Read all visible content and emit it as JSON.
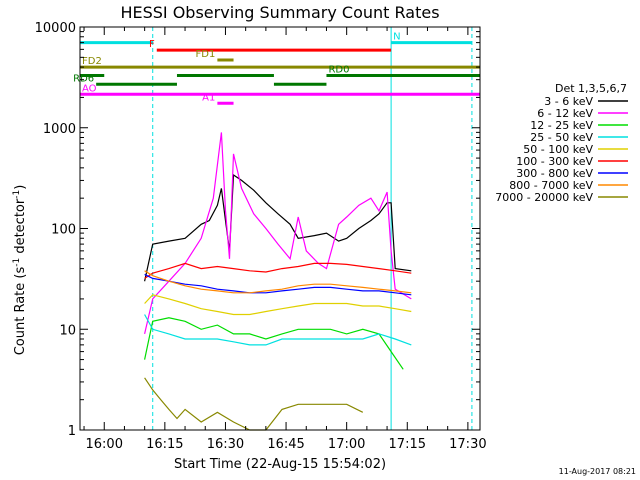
{
  "chart_data": {
    "type": "line",
    "title": "HESSI Observing Summary Count Rates",
    "xlabel": "Start Time (22-Aug-15 15:54:02)",
    "ylabel": "Count Rate (s⁻¹ detector⁻¹)",
    "ylabel_parts": {
      "main": "Count Rate (s",
      "exp1": "-1",
      "mid": " detector",
      "exp2": "-1",
      "end": ")"
    },
    "y_scale": "log",
    "xlim": [
      "15:54",
      "17:33"
    ],
    "ylim": [
      1,
      10000
    ],
    "x_ticks": [
      "16:00",
      "16:15",
      "16:30",
      "16:45",
      "17:00",
      "17:15",
      "17:30"
    ],
    "y_ticks": [
      {
        "value": 1,
        "label": "1"
      },
      {
        "value": 10,
        "label": "10"
      },
      {
        "value": 100,
        "label": "100"
      },
      {
        "value": 1000,
        "label": "1000"
      },
      {
        "value": 10000,
        "label": "10000"
      }
    ],
    "legend_title": "Det 1,3,5,6,7",
    "legend_placement": "right",
    "series": [
      {
        "name": "3 - 6 keV",
        "color": "#000000",
        "points": [
          [
            "16:10",
            30
          ],
          [
            "16:12",
            70
          ],
          [
            "16:16",
            75
          ],
          [
            "16:20",
            80
          ],
          [
            "16:24",
            110
          ],
          [
            "16:26",
            120
          ],
          [
            "16:28",
            170
          ],
          [
            "16:29",
            250
          ],
          [
            "16:30",
            120
          ],
          [
            "16:31",
            60
          ],
          [
            "16:32",
            340
          ],
          [
            "16:34",
            300
          ],
          [
            "16:37",
            240
          ],
          [
            "16:40",
            180
          ],
          [
            "16:43",
            140
          ],
          [
            "16:46",
            110
          ],
          [
            "16:48",
            80
          ],
          [
            "16:52",
            85
          ],
          [
            "16:55",
            90
          ],
          [
            "16:58",
            75
          ],
          [
            "17:00",
            80
          ],
          [
            "17:03",
            100
          ],
          [
            "17:06",
            120
          ],
          [
            "17:08",
            140
          ],
          [
            "17:10",
            180
          ],
          [
            "17:11",
            180
          ],
          [
            "17:12",
            40
          ],
          [
            "17:16",
            38
          ]
        ]
      },
      {
        "name": "6 - 12 keV",
        "color": "#ff00ff",
        "points": [
          [
            "16:10",
            9
          ],
          [
            "16:12",
            20
          ],
          [
            "16:16",
            30
          ],
          [
            "16:20",
            45
          ],
          [
            "16:24",
            80
          ],
          [
            "16:27",
            200
          ],
          [
            "16:29",
            900
          ],
          [
            "16:30",
            150
          ],
          [
            "16:31",
            50
          ],
          [
            "16:32",
            550
          ],
          [
            "16:34",
            250
          ],
          [
            "16:37",
            140
          ],
          [
            "16:40",
            100
          ],
          [
            "16:43",
            70
          ],
          [
            "16:46",
            50
          ],
          [
            "16:48",
            130
          ],
          [
            "16:50",
            60
          ],
          [
            "16:53",
            45
          ],
          [
            "16:55",
            40
          ],
          [
            "16:58",
            110
          ],
          [
            "17:00",
            130
          ],
          [
            "17:03",
            170
          ],
          [
            "17:06",
            200
          ],
          [
            "17:08",
            150
          ],
          [
            "17:10",
            230
          ],
          [
            "17:11",
            60
          ],
          [
            "17:12",
            25
          ],
          [
            "17:16",
            20
          ]
        ]
      },
      {
        "name": "12 - 25 keV",
        "color": "#00dd00",
        "points": [
          [
            "16:10",
            5
          ],
          [
            "16:12",
            12
          ],
          [
            "16:16",
            13
          ],
          [
            "16:20",
            12
          ],
          [
            "16:24",
            10
          ],
          [
            "16:28",
            11
          ],
          [
            "16:32",
            9
          ],
          [
            "16:36",
            9
          ],
          [
            "16:40",
            8
          ],
          [
            "16:44",
            9
          ],
          [
            "16:48",
            10
          ],
          [
            "16:52",
            10
          ],
          [
            "16:56",
            10
          ],
          [
            "17:00",
            9
          ],
          [
            "17:04",
            10
          ],
          [
            "17:08",
            9
          ],
          [
            "17:11",
            6
          ],
          [
            "17:14",
            4
          ]
        ]
      },
      {
        "name": "25 - 50 keV",
        "color": "#00e0e0",
        "points": [
          [
            "16:10",
            14
          ],
          [
            "16:12",
            10
          ],
          [
            "16:16",
            9
          ],
          [
            "16:20",
            8
          ],
          [
            "16:24",
            8
          ],
          [
            "16:28",
            8
          ],
          [
            "16:32",
            7.5
          ],
          [
            "16:36",
            7
          ],
          [
            "16:40",
            7
          ],
          [
            "16:44",
            8
          ],
          [
            "16:48",
            8
          ],
          [
            "16:52",
            8
          ],
          [
            "16:56",
            8
          ],
          [
            "17:00",
            8
          ],
          [
            "17:04",
            8
          ],
          [
            "17:08",
            9
          ],
          [
            "17:12",
            8
          ],
          [
            "17:16",
            7
          ]
        ]
      },
      {
        "name": "50 - 100 keV",
        "color": "#e0d000",
        "points": [
          [
            "16:10",
            18
          ],
          [
            "16:12",
            22
          ],
          [
            "16:16",
            20
          ],
          [
            "16:20",
            18
          ],
          [
            "16:24",
            16
          ],
          [
            "16:28",
            15
          ],
          [
            "16:32",
            14
          ],
          [
            "16:36",
            14
          ],
          [
            "16:40",
            15
          ],
          [
            "16:44",
            16
          ],
          [
            "16:48",
            17
          ],
          [
            "16:52",
            18
          ],
          [
            "16:56",
            18
          ],
          [
            "17:00",
            18
          ],
          [
            "17:04",
            17
          ],
          [
            "17:08",
            17
          ],
          [
            "17:12",
            16
          ],
          [
            "17:16",
            15
          ]
        ]
      },
      {
        "name": "100 - 300 keV",
        "color": "#ff0000",
        "points": [
          [
            "16:10",
            32
          ],
          [
            "16:12",
            36
          ],
          [
            "16:16",
            40
          ],
          [
            "16:20",
            45
          ],
          [
            "16:24",
            40
          ],
          [
            "16:28",
            42
          ],
          [
            "16:32",
            40
          ],
          [
            "16:36",
            38
          ],
          [
            "16:40",
            37
          ],
          [
            "16:44",
            40
          ],
          [
            "16:48",
            42
          ],
          [
            "16:52",
            45
          ],
          [
            "16:56",
            45
          ],
          [
            "17:00",
            44
          ],
          [
            "17:04",
            42
          ],
          [
            "17:08",
            40
          ],
          [
            "17:12",
            38
          ],
          [
            "17:16",
            36
          ]
        ]
      },
      {
        "name": "300 - 800 keV",
        "color": "#0000ff",
        "points": [
          [
            "16:10",
            35
          ],
          [
            "16:12",
            32
          ],
          [
            "16:16",
            30
          ],
          [
            "16:20",
            28
          ],
          [
            "16:24",
            27
          ],
          [
            "16:28",
            25
          ],
          [
            "16:32",
            24
          ],
          [
            "16:36",
            23
          ],
          [
            "16:40",
            23
          ],
          [
            "16:44",
            24
          ],
          [
            "16:48",
            25
          ],
          [
            "16:52",
            26
          ],
          [
            "16:56",
            26
          ],
          [
            "17:00",
            25
          ],
          [
            "17:04",
            24
          ],
          [
            "17:08",
            24
          ],
          [
            "17:12",
            23
          ],
          [
            "17:16",
            22
          ]
        ]
      },
      {
        "name": "800 - 7000 keV",
        "color": "#ff8800",
        "points": [
          [
            "16:10",
            38
          ],
          [
            "16:12",
            34
          ],
          [
            "16:16",
            30
          ],
          [
            "16:20",
            27
          ],
          [
            "16:24",
            25
          ],
          [
            "16:28",
            24
          ],
          [
            "16:32",
            23
          ],
          [
            "16:36",
            23
          ],
          [
            "16:40",
            24
          ],
          [
            "16:44",
            25
          ],
          [
            "16:48",
            27
          ],
          [
            "16:52",
            28
          ],
          [
            "16:56",
            28
          ],
          [
            "17:00",
            27
          ],
          [
            "17:04",
            26
          ],
          [
            "17:08",
            25
          ],
          [
            "17:12",
            24
          ],
          [
            "17:16",
            23
          ]
        ]
      },
      {
        "name": "7000 - 20000 keV",
        "color": "#888800",
        "points": [
          [
            "16:10",
            3.3
          ],
          [
            "16:12",
            2.5
          ],
          [
            "16:14",
            2
          ],
          [
            "16:16",
            1.6
          ],
          [
            "16:18",
            1.3
          ],
          [
            "16:20",
            1.6
          ],
          [
            "16:24",
            1.2
          ],
          [
            "16:28",
            1.5
          ],
          [
            "16:32",
            1.2
          ],
          [
            "16:36",
            1
          ],
          [
            "16:40",
            1
          ],
          [
            "16:44",
            1.6
          ],
          [
            "16:48",
            1.8
          ],
          [
            "16:52",
            1.8
          ],
          [
            "16:56",
            1.8
          ],
          [
            "17:00",
            1.8
          ],
          [
            "17:04",
            1.5
          ]
        ]
      }
    ],
    "state_bars": [
      {
        "label": "N",
        "color": "#00e0e0",
        "level": 7000,
        "segments": [
          [
            "15:54",
            "16:12"
          ],
          [
            "17:11",
            "17:31"
          ]
        ]
      },
      {
        "label": "F",
        "color": "#ff0000",
        "level": 5900,
        "segments": [
          [
            "16:13",
            "17:11"
          ]
        ]
      },
      {
        "label": "FD1",
        "color": "#888800",
        "level": 4700,
        "segments": [
          [
            "16:28",
            "16:32"
          ]
        ]
      },
      {
        "label": "FD2",
        "color": "#888800",
        "level": 4000,
        "segments": [
          [
            "15:54",
            "17:33"
          ]
        ]
      },
      {
        "label": "RD0",
        "color": "#007700",
        "level": 3300,
        "segments": [
          [
            "15:54",
            "16:00"
          ],
          [
            "16:18",
            "16:42"
          ],
          [
            "16:55",
            "17:33"
          ]
        ]
      },
      {
        "label": "RD6",
        "color": "#007700",
        "level": 2700,
        "segments": [
          [
            "15:58",
            "16:18"
          ],
          [
            "16:42",
            "16:55"
          ]
        ]
      },
      {
        "label": "AO",
        "color": "#ff00ff",
        "level": 2150,
        "segments": [
          [
            "15:54",
            "17:33"
          ]
        ]
      },
      {
        "label": "A1",
        "color": "#ff00ff",
        "level": 1750,
        "segments": [
          [
            "16:28",
            "16:32"
          ]
        ]
      }
    ],
    "vlines": [
      {
        "time": "15:54",
        "color": "#00e0e0",
        "style": "solid"
      },
      {
        "time": "16:12",
        "color": "#00e0e0",
        "style": "dashed"
      },
      {
        "time": "17:11",
        "color": "#00e0e0",
        "style": "solid"
      },
      {
        "time": "17:31",
        "color": "#00e0e0",
        "style": "dashed"
      }
    ],
    "timestamp": "11-Aug-2017 08:21"
  }
}
